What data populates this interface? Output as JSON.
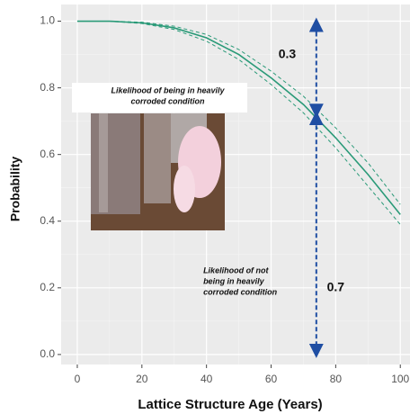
{
  "chart_data": {
    "type": "line",
    "x_label": "Lattice Structure Age (Years)",
    "y_label": "Probability",
    "x": [
      0,
      10,
      20,
      30,
      40,
      50,
      60,
      70,
      80,
      90,
      100
    ],
    "series": [
      {
        "color": "#2a9a78",
        "style": "solid",
        "values": [
          1.0,
          1.0,
          0.995,
          0.98,
          0.95,
          0.9,
          0.83,
          0.75,
          0.65,
          0.54,
          0.42
        ]
      },
      {
        "color": "#2a9a78",
        "style": "dashed",
        "values": [
          1.0,
          1.0,
          0.997,
          0.985,
          0.96,
          0.915,
          0.85,
          0.775,
          0.68,
          0.575,
          0.45
        ]
      },
      {
        "color": "#2a9a78",
        "style": "dashed",
        "values": [
          1.0,
          1.0,
          0.993,
          0.975,
          0.94,
          0.885,
          0.81,
          0.725,
          0.62,
          0.505,
          0.39
        ]
      }
    ],
    "xlim": [
      -5,
      103
    ],
    "ylim": [
      -0.03,
      1.05
    ],
    "xticks": [
      0,
      20,
      40,
      60,
      80,
      100
    ],
    "yticks": [
      {
        "value": 0,
        "label": "0.0"
      },
      0.2,
      0.4,
      0.6,
      0.8,
      {
        "value": 1,
        "label": "1.0"
      }
    ],
    "grid": true,
    "arrow": {
      "x": 74,
      "top": 1.0,
      "mid": 0.72,
      "bottom": 0.0,
      "color": "#1f4ea3"
    },
    "annotations": [
      {
        "text": "0.3",
        "x": 65,
        "y": 0.9
      },
      {
        "text": "0.7",
        "x": 80,
        "y": 0.2
      },
      {
        "lines": [
          "Likelihood of being in heavily",
          "corroded condition"
        ],
        "x": 28,
        "y": 0.79
      },
      {
        "lines": [
          "Likelihood of not",
          "being in heavily",
          "corroded condition"
        ],
        "x": 39,
        "y": 0.25
      }
    ]
  }
}
